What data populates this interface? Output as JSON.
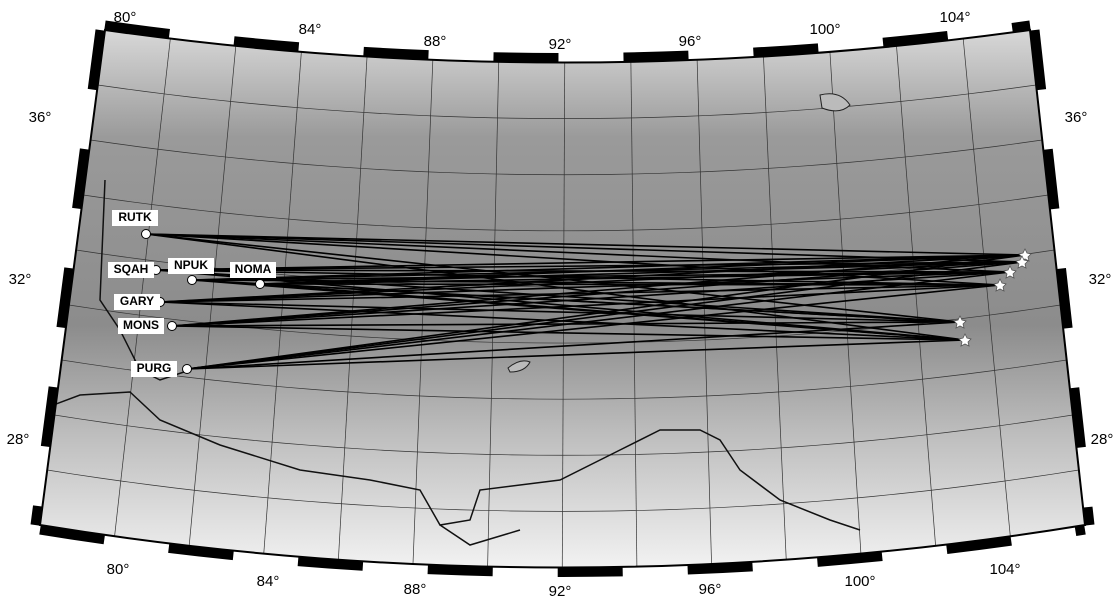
{
  "map": {
    "top_lon_labels": [
      "80°",
      "84°",
      "88°",
      "92°",
      "96°",
      "100°",
      "104°"
    ],
    "bottom_lon_labels": [
      "80°",
      "84°",
      "88°",
      "92°",
      "96°",
      "100°",
      "104°"
    ],
    "left_lat_labels": [
      "36°",
      "32°",
      "28°"
    ],
    "right_lat_labels": [
      "36°",
      "32°",
      "28°"
    ],
    "stations": [
      "RUTK",
      "SQAH",
      "NPUK",
      "NOMA",
      "GARY",
      "MONS",
      "PURG"
    ]
  }
}
